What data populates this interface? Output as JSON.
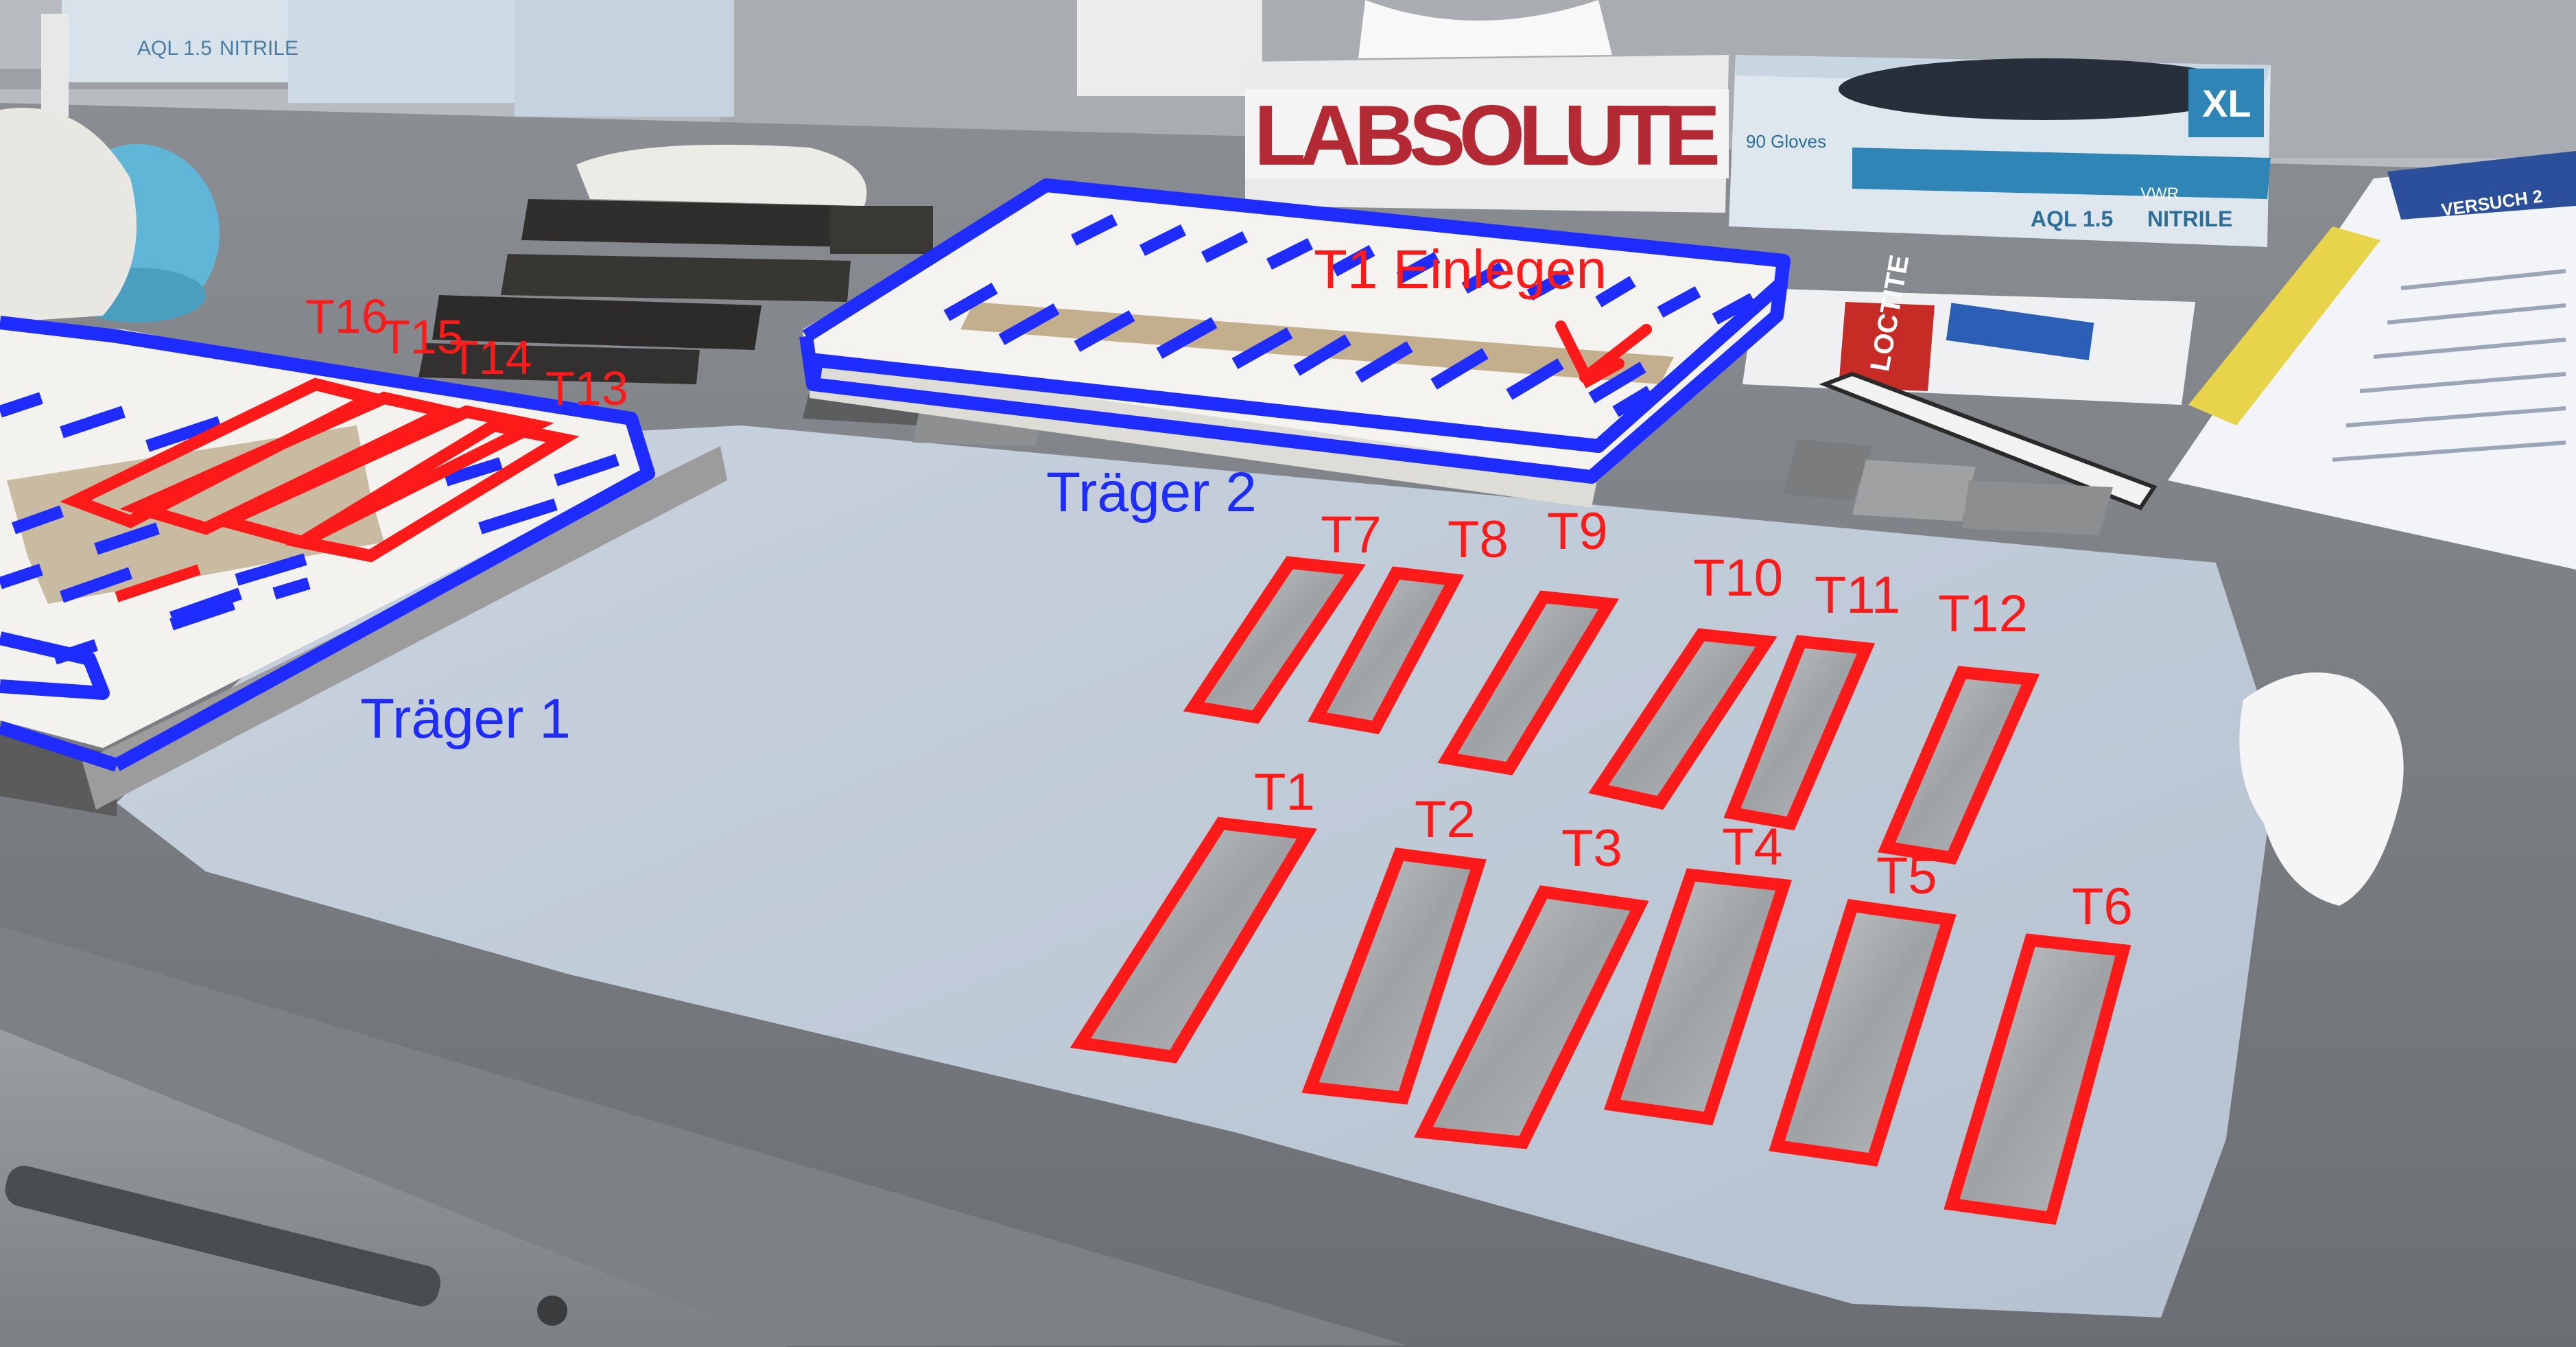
{
  "colors": {
    "annotation_red": "#ff1a1a",
    "annotation_blue": "#1e2cff"
  },
  "background_print": {
    "tissue_box_brand": "LABSOLUTE",
    "glove_box_size": "XL",
    "glove_box_aql": "AQL 1.5",
    "glove_box_material": "NITRILE",
    "glove_box_count": "90 Gloves",
    "glove_box_brand": "VWR",
    "left_box_aql": "AQL 1.5",
    "left_box_material": "NITRILE",
    "glue_brand": "LOCTITE",
    "doc_heading": "VERSUCH 2"
  },
  "annotations": {
    "carrier_1_label": "Träger 1",
    "carrier_2_label": "Träger 2",
    "insert_instruction": "T1 Einlegen",
    "specimens": {
      "t1": "T1",
      "t2": "T2",
      "t3": "T3",
      "t4": "T4",
      "t5": "T5",
      "t6": "T6",
      "t7": "T7",
      "t8": "T8",
      "t9": "T9",
      "t10": "T10",
      "t11": "T11",
      "t12": "T12",
      "t13": "T13",
      "t14": "T14",
      "t15": "T15",
      "t16": "T16"
    }
  }
}
